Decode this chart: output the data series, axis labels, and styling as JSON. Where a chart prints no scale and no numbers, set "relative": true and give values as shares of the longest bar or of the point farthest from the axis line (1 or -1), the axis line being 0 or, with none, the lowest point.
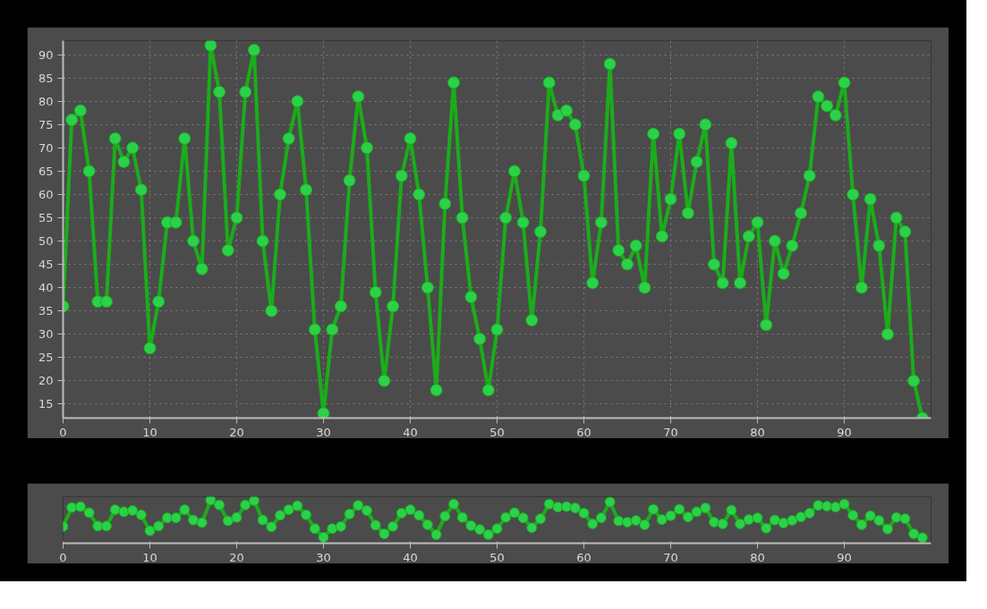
{
  "chart_data": [
    {
      "type": "line",
      "x": [
        0,
        1,
        2,
        3,
        4,
        5,
        6,
        7,
        8,
        9,
        10,
        11,
        12,
        13,
        14,
        15,
        16,
        17,
        18,
        19,
        20,
        21,
        22,
        23,
        24,
        25,
        26,
        27,
        28,
        29,
        30,
        31,
        32,
        33,
        34,
        35,
        36,
        37,
        38,
        39,
        40,
        41,
        42,
        43,
        44,
        45,
        46,
        47,
        48,
        49,
        50,
        51,
        52,
        53,
        54,
        55,
        56,
        57,
        58,
        59,
        60,
        61,
        62,
        63,
        64,
        65,
        66,
        67,
        68,
        69,
        70,
        71,
        72,
        73,
        74,
        75,
        76,
        77,
        78,
        79,
        80,
        81,
        82,
        83,
        84,
        85,
        86,
        87,
        88,
        89,
        90,
        91,
        92,
        93,
        94,
        95,
        96,
        97,
        98,
        99
      ],
      "series": [
        {
          "color": "#1aad1a",
          "values": [
            36,
            76,
            78,
            65,
            37,
            37,
            72,
            67,
            70,
            61,
            27,
            37,
            54,
            54,
            72,
            50,
            44,
            92,
            82,
            48,
            55,
            82,
            91,
            50,
            35,
            60,
            72,
            80,
            61,
            31,
            13,
            31,
            36,
            63,
            81,
            70,
            39,
            20,
            36,
            64,
            72,
            60,
            40,
            18,
            58,
            84,
            55,
            38,
            29,
            18,
            31,
            55,
            65,
            54,
            33,
            52,
            84,
            77,
            78,
            75,
            64,
            41,
            54,
            88,
            48,
            45,
            49,
            40,
            73,
            51,
            59,
            73,
            56,
            67,
            75,
            45,
            41,
            71,
            41,
            51,
            54,
            32,
            50,
            43,
            49,
            56,
            64,
            81,
            79,
            77,
            84,
            60,
            40,
            59,
            49,
            30,
            55,
            52,
            20,
            12
          ]
        }
      ],
      "xlim": [
        0,
        100
      ],
      "ylim": [
        12,
        93
      ],
      "xticks": [
        0,
        10,
        20,
        30,
        40,
        50,
        60,
        70,
        80,
        90
      ],
      "yticks": [
        15,
        20,
        25,
        30,
        35,
        40,
        45,
        50,
        55,
        60,
        65,
        70,
        75,
        80,
        85,
        90
      ],
      "grid": true,
      "marker": "circle",
      "line_style": "solid"
    },
    {
      "type": "line",
      "relative": true,
      "x": [
        0,
        1,
        2,
        3,
        4,
        5,
        6,
        7,
        8,
        9,
        10,
        11,
        12,
        13,
        14,
        15,
        16,
        17,
        18,
        19,
        20,
        21,
        22,
        23,
        24,
        25,
        26,
        27,
        28,
        29,
        30,
        31,
        32,
        33,
        34,
        35,
        36,
        37,
        38,
        39,
        40,
        41,
        42,
        43,
        44,
        45,
        46,
        47,
        48,
        49,
        50,
        51,
        52,
        53,
        54,
        55,
        56,
        57,
        58,
        59,
        60,
        61,
        62,
        63,
        64,
        65,
        66,
        67,
        68,
        69,
        70,
        71,
        72,
        73,
        74,
        75,
        76,
        77,
        78,
        79,
        80,
        81,
        82,
        83,
        84,
        85,
        86,
        87,
        88,
        89,
        90,
        91,
        92,
        93,
        94,
        95,
        96,
        97,
        98,
        99
      ],
      "series": [
        {
          "color": "#1aad1a",
          "values": [
            0.39,
            0.83,
            0.85,
            0.71,
            0.4,
            0.4,
            0.78,
            0.73,
            0.76,
            0.66,
            0.29,
            0.4,
            0.59,
            0.59,
            0.78,
            0.54,
            0.48,
            1,
            0.89,
            0.52,
            0.6,
            0.89,
            0.99,
            0.54,
            0.38,
            0.65,
            0.78,
            0.87,
            0.66,
            0.34,
            0.14,
            0.34,
            0.39,
            0.68,
            0.88,
            0.76,
            0.42,
            0.22,
            0.39,
            0.7,
            0.78,
            0.65,
            0.43,
            0.2,
            0.63,
            0.91,
            0.6,
            0.41,
            0.32,
            0.2,
            0.34,
            0.6,
            0.71,
            0.59,
            0.36,
            0.57,
            0.91,
            0.84,
            0.85,
            0.82,
            0.7,
            0.45,
            0.59,
            0.96,
            0.52,
            0.49,
            0.53,
            0.43,
            0.79,
            0.55,
            0.64,
            0.79,
            0.61,
            0.73,
            0.82,
            0.49,
            0.45,
            0.77,
            0.45,
            0.55,
            0.59,
            0.35,
            0.54,
            0.47,
            0.53,
            0.61,
            0.7,
            0.88,
            0.86,
            0.84,
            0.91,
            0.65,
            0.43,
            0.64,
            0.53,
            0.33,
            0.6,
            0.57,
            0.22,
            0.13
          ]
        }
      ],
      "xlim": [
        0,
        100
      ],
      "xticks": [
        0,
        10,
        20,
        30,
        40,
        50,
        60,
        70,
        80,
        90
      ],
      "tick_labels": "x",
      "grid": false,
      "marker": "circle",
      "line_style": "solid"
    }
  ]
}
